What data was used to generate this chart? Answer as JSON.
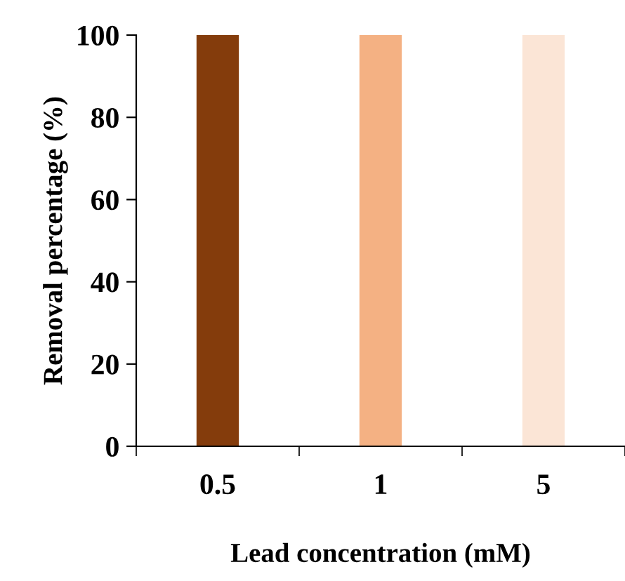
{
  "chart_data": {
    "type": "bar",
    "xlabel": "Lead concentration (mM)",
    "ylabel": "Removal percentage (%)",
    "categories": [
      "0.5",
      "1",
      "5"
    ],
    "values": [
      100,
      100,
      100
    ],
    "colors": [
      "#843c0c",
      "#f4b183",
      "#fbe5d6"
    ],
    "ylim": [
      0,
      100
    ],
    "yticks": [
      0,
      20,
      40,
      60,
      80,
      100
    ],
    "grid": false,
    "legend": false
  }
}
